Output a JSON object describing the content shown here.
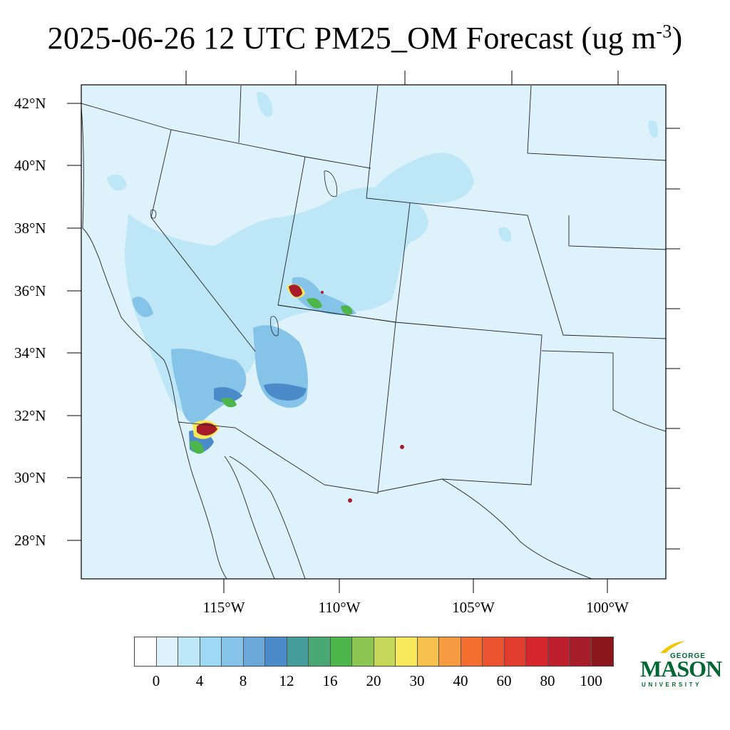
{
  "title": {
    "main": "2025-06-26 12 UTC PM25_OM Forecast (ug m",
    "sup": "-3",
    "close": ")"
  },
  "map": {
    "background_color": "#ddf2fb",
    "lat_labels": [
      "42°N",
      "40°N",
      "38°N",
      "36°N",
      "34°N",
      "32°N",
      "30°N",
      "28°N"
    ],
    "lon_labels": [
      "115°W",
      "110°W",
      "105°W",
      "100°W"
    ]
  },
  "colorbar": {
    "colors": [
      "#ffffff",
      "#ddf2fb",
      "#bde6f6",
      "#9dd9f4",
      "#85c3e8",
      "#6aa8da",
      "#4b8bc9",
      "#469c9a",
      "#49a872",
      "#4db64a",
      "#8dc553",
      "#c6d85a",
      "#f8e95a",
      "#f8c04e",
      "#f69b41",
      "#f26d2e",
      "#ea5230",
      "#e13c2d",
      "#d5262e",
      "#bd1f2d",
      "#a71c29",
      "#8b171d"
    ],
    "labels": [
      "0",
      "4",
      "8",
      "12",
      "16",
      "20",
      "30",
      "40",
      "60",
      "80",
      "100"
    ]
  },
  "logo": {
    "line1": "GEORGE",
    "line2": "MASON",
    "line3": "UNIVERSITY"
  }
}
